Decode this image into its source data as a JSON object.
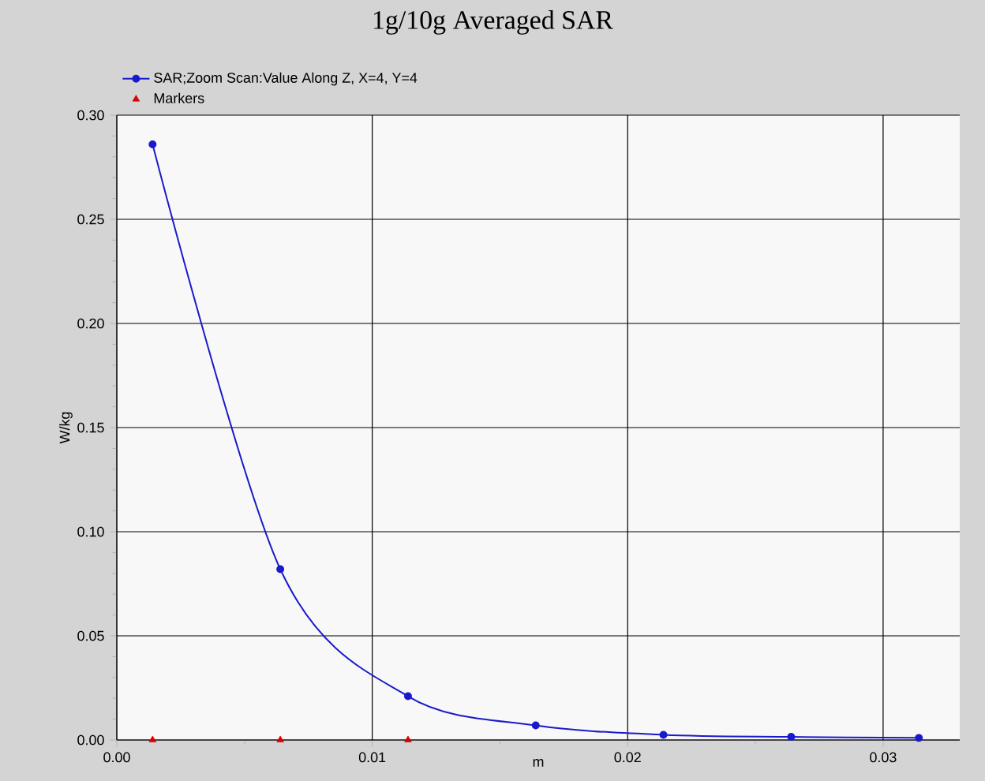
{
  "chart_data": {
    "type": "line",
    "title": "1g/10g Averaged SAR",
    "xlabel": "m",
    "ylabel": "W/kg",
    "xlim": [
      0,
      0.033
    ],
    "ylim": [
      0,
      0.3
    ],
    "xticks": [
      {
        "value": 0,
        "label": "0.00"
      },
      0.01,
      0.02,
      0.03
    ],
    "yticks": [
      {
        "value": 0,
        "label": "0.00"
      },
      0.05,
      {
        "value": 0.1,
        "label": "0.10"
      },
      0.15,
      {
        "value": 0.2,
        "label": "0.20"
      },
      0.25,
      {
        "value": 0.3,
        "label": "0.30"
      }
    ],
    "grid": true,
    "legend": "top left",
    "series": [
      {
        "name": "SAR;Zoom Scan:Value Along Z, X=4, Y=4",
        "color": "#1a1acc",
        "marker": "circle",
        "x": [
          0.0014,
          0.0064,
          0.0114,
          0.0164,
          0.0214,
          0.0264,
          0.0314
        ],
        "values": [
          0.286,
          0.082,
          0.021,
          0.007,
          0.0025,
          0.0015,
          0.001
        ]
      },
      {
        "name": "Markers",
        "color": "#dd0000",
        "type": "scatter",
        "marker": "triangle",
        "x": [
          0.0014,
          0.0064,
          0.0114
        ],
        "values": [
          0,
          0,
          0
        ]
      }
    ]
  }
}
